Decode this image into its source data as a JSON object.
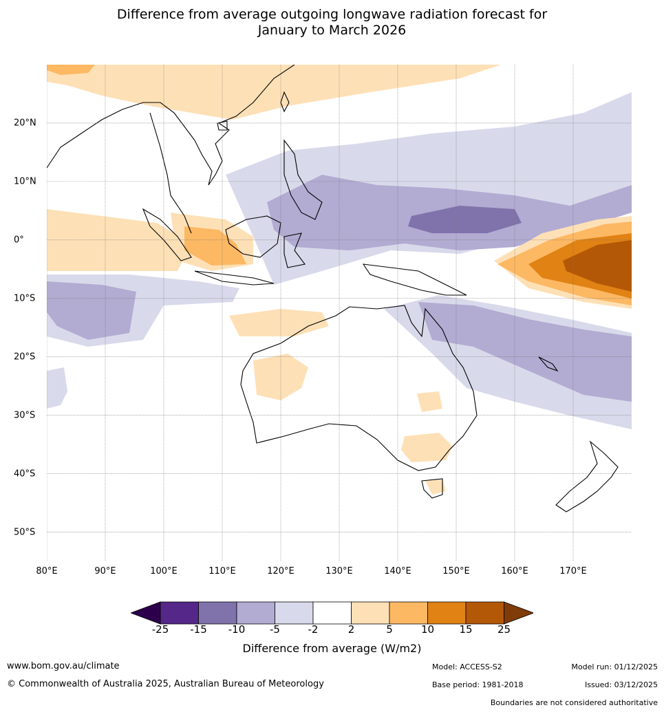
{
  "title_line1": "Difference from average outgoing longwave radiation forecast for",
  "title_line2": "January to March 2026",
  "lon_ticks": [
    "80°E",
    "90°E",
    "100°E",
    "110°E",
    "120°E",
    "130°E",
    "140°E",
    "150°E",
    "160°E",
    "170°E"
  ],
  "lat_ticks": [
    "20°N",
    "10°N",
    "0°",
    "10°S",
    "20°S",
    "30°S",
    "40°S",
    "50°S"
  ],
  "colorbar": {
    "labels": [
      "-25",
      "-15",
      "-10",
      "-5",
      "-2",
      "2",
      "5",
      "10",
      "15",
      "25"
    ],
    "colors": [
      "#2d004b",
      "#542788",
      "#8073ac",
      "#b2abd2",
      "#d8daeb",
      "#ffffff",
      "#fee0b6",
      "#fdb863",
      "#e08214",
      "#b35806",
      "#7f3b08"
    ],
    "title": "Difference from average (W/m2)"
  },
  "footer": {
    "website": "www.bom.gov.au/climate",
    "copyright": "© Commonwealth of Australia 2025, Australian Bureau of Meteorology",
    "model": "Model: ACCESS-S2",
    "base_period": "Base period: 1981-2018",
    "model_run": "Model run: 01/12/2025",
    "issued": "Issued: 03/12/2025",
    "disclaimer": "Boundaries are not considered authoritative"
  },
  "map_extent": {
    "lon_min": 80,
    "lon_max": 180,
    "lat_min": -55,
    "lat_max": 30
  }
}
